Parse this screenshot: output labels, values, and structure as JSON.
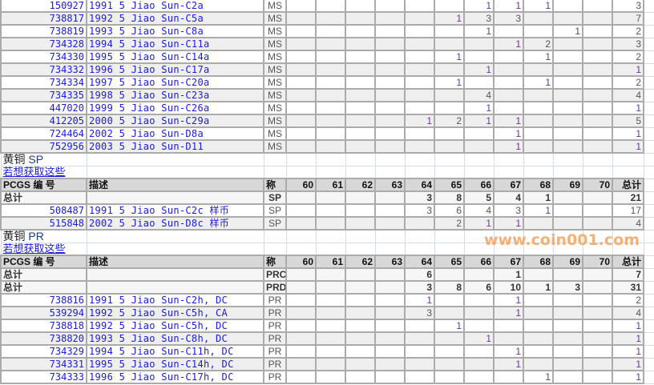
{
  "columns": {
    "pcgs": "PCGS 编 号",
    "desc": "描述",
    "grade": "称",
    "grades": [
      "60",
      "61",
      "62",
      "63",
      "64",
      "65",
      "66",
      "67",
      "68",
      "69",
      "70"
    ],
    "total": "总计"
  },
  "ms_rows": [
    {
      "pcgs": "150927",
      "desc": "1991 5 Jiao Sun-C2a",
      "grade": "MS",
      "counts": [
        null,
        null,
        null,
        null,
        null,
        null,
        1,
        1,
        1,
        null,
        null
      ],
      "total": "3"
    },
    {
      "pcgs": "738817",
      "desc": "1992 5 Jiao Sun-C5a",
      "grade": "MS",
      "counts": [
        null,
        null,
        null,
        null,
        null,
        1,
        3,
        3,
        null,
        null,
        null
      ],
      "total": "7"
    },
    {
      "pcgs": "738819",
      "desc": "1993 5 Jiao Sun-C8a",
      "grade": "MS",
      "counts": [
        null,
        null,
        null,
        null,
        null,
        null,
        1,
        null,
        null,
        1,
        null
      ],
      "total": "2"
    },
    {
      "pcgs": "734328",
      "desc": "1994 5 Jiao Sun-C11a",
      "grade": "MS",
      "counts": [
        null,
        null,
        null,
        null,
        null,
        null,
        null,
        1,
        2,
        null,
        null
      ],
      "total": "3"
    },
    {
      "pcgs": "734330",
      "desc": "1995 5 Jiao Sun-C14a",
      "grade": "MS",
      "counts": [
        null,
        null,
        null,
        null,
        null,
        1,
        null,
        null,
        1,
        null,
        null
      ],
      "total": "2"
    },
    {
      "pcgs": "734332",
      "desc": "1996 5 Jiao Sun-C17a",
      "grade": "MS",
      "counts": [
        null,
        null,
        null,
        null,
        null,
        null,
        1,
        null,
        null,
        null,
        null
      ],
      "total": "1"
    },
    {
      "pcgs": "734334",
      "desc": "1997 5 Jiao Sun-C20a",
      "grade": "MS",
      "counts": [
        null,
        null,
        null,
        null,
        null,
        1,
        null,
        null,
        1,
        null,
        null
      ],
      "total": "2"
    },
    {
      "pcgs": "734335",
      "desc": "1998 5 Jiao Sun-C23a",
      "grade": "MS",
      "counts": [
        null,
        null,
        null,
        null,
        null,
        null,
        4,
        null,
        null,
        null,
        null
      ],
      "total": "4"
    },
    {
      "pcgs": "447020",
      "desc": "1999 5 Jiao Sun-C26a",
      "grade": "MS",
      "counts": [
        null,
        null,
        null,
        null,
        null,
        null,
        1,
        null,
        null,
        null,
        null
      ],
      "total": "1"
    },
    {
      "pcgs": "412205",
      "desc": "2000 5 Jiao Sun-C29a",
      "grade": "MS",
      "counts": [
        null,
        null,
        null,
        null,
        1,
        2,
        1,
        1,
        null,
        null,
        null
      ],
      "total": "5"
    },
    {
      "pcgs": "724464",
      "desc": "2002 5 Jiao Sun-D8a",
      "grade": "MS",
      "counts": [
        null,
        null,
        null,
        null,
        null,
        null,
        null,
        1,
        null,
        null,
        null
      ],
      "total": "1"
    },
    {
      "pcgs": "752956",
      "desc": "2003 5 Jiao Sun-D11",
      "grade": "MS",
      "counts": [
        null,
        null,
        null,
        null,
        null,
        null,
        null,
        1,
        null,
        null,
        null
      ],
      "total": "1"
    }
  ],
  "sp": {
    "title_metal": "黄铜",
    "title_grade": "SP",
    "link": "若想获取这些",
    "totals": [
      {
        "label": "总计",
        "grade": "SP",
        "counts": [
          null,
          null,
          null,
          null,
          3,
          8,
          5,
          4,
          1,
          null,
          null
        ],
        "total": "21"
      }
    ],
    "rows": [
      {
        "pcgs": "508487",
        "desc": "1991 5 Jiao Sun-C2c 样币",
        "grade": "SP",
        "counts": [
          null,
          null,
          null,
          null,
          3,
          6,
          4,
          3,
          1,
          null,
          null
        ],
        "total": "17"
      },
      {
        "pcgs": "515848",
        "desc": "2002 5 Jiao Sun-D8c 样币",
        "grade": "SP",
        "counts": [
          null,
          null,
          null,
          null,
          null,
          2,
          1,
          1,
          null,
          null,
          null
        ],
        "total": "4"
      }
    ]
  },
  "pr": {
    "title_metal": "黄铜",
    "title_grade": "PR",
    "link": "若想获取这些",
    "totals": [
      {
        "label": "总计",
        "grade": "PRC",
        "counts": [
          null,
          null,
          null,
          null,
          6,
          null,
          null,
          1,
          null,
          null,
          null
        ],
        "total": "7"
      },
      {
        "label": "总计",
        "grade": "PRD",
        "counts": [
          null,
          null,
          null,
          null,
          3,
          8,
          6,
          10,
          1,
          3,
          null
        ],
        "total": "31"
      }
    ],
    "rows": [
      {
        "pcgs": "738816",
        "desc": "1991 5 Jiao Sun-C2h, DC",
        "grade": "PR",
        "counts": [
          null,
          null,
          null,
          null,
          1,
          null,
          null,
          1,
          null,
          null,
          null
        ],
        "total": "2"
      },
      {
        "pcgs": "539294",
        "desc": "1992 5 Jiao Sun-C5h, CA",
        "grade": "PR",
        "counts": [
          null,
          null,
          null,
          null,
          3,
          null,
          null,
          1,
          null,
          null,
          null
        ],
        "total": "4"
      },
      {
        "pcgs": "738818",
        "desc": "1992 5 Jiao Sun-C5h, DC",
        "grade": "PR",
        "counts": [
          null,
          null,
          null,
          null,
          null,
          1,
          null,
          null,
          null,
          null,
          null
        ],
        "total": "1"
      },
      {
        "pcgs": "738820",
        "desc": "1993 5 Jiao Sun-C8h, DC",
        "grade": "PR",
        "counts": [
          null,
          null,
          null,
          null,
          null,
          null,
          1,
          null,
          null,
          null,
          null
        ],
        "total": "1"
      },
      {
        "pcgs": "734329",
        "desc": "1994 5 Jiao Sun-C11h, DC",
        "grade": "PR",
        "counts": [
          null,
          null,
          null,
          null,
          null,
          null,
          null,
          1,
          null,
          null,
          null
        ],
        "total": "1"
      },
      {
        "pcgs": "734331",
        "desc": "1995 5 Jiao Sun-C14h, DC",
        "grade": "PR",
        "counts": [
          null,
          null,
          null,
          null,
          null,
          null,
          null,
          1,
          null,
          null,
          null
        ],
        "total": "1"
      },
      {
        "pcgs": "734333",
        "desc": "1996 5 Jiao Sun-C17h, DC",
        "grade": "PR",
        "counts": [
          null,
          null,
          null,
          null,
          null,
          null,
          null,
          null,
          1,
          null,
          null
        ],
        "total": "1"
      }
    ]
  },
  "watermark": "www.coin001.com",
  "colors": {
    "link": "#1a1ae0",
    "header_bg": "#d8d8d8",
    "alt_row": "#efefef",
    "watermark": "#f4a45a",
    "count_one": "#7030a0"
  }
}
